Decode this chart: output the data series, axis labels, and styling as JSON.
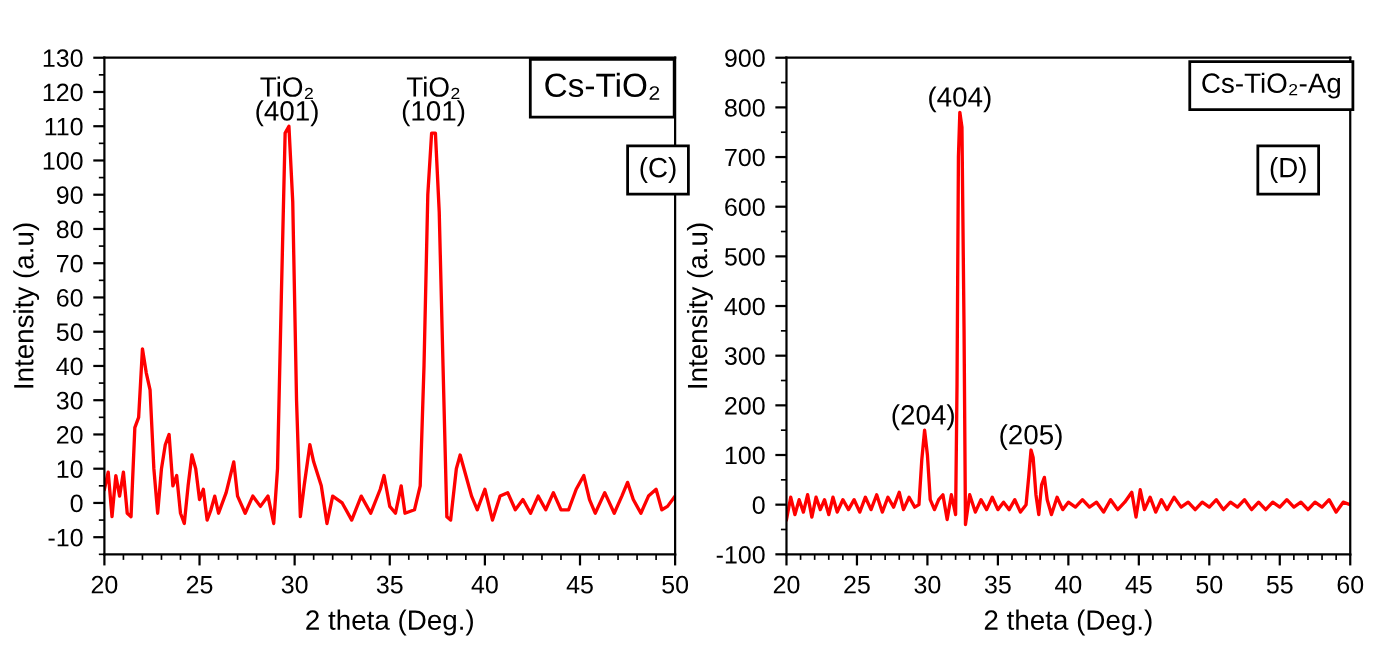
{
  "chart_data": [
    {
      "type": "line",
      "xlabel": "2 theta (Deg.)",
      "ylabel": "Intensity (a.u)",
      "xlim": [
        20,
        50
      ],
      "ylim": [
        -15,
        130
      ],
      "xticks": [
        20,
        25,
        30,
        35,
        40,
        45,
        50
      ],
      "yticks": [
        -10,
        0,
        10,
        20,
        30,
        40,
        50,
        60,
        70,
        80,
        90,
        100,
        110,
        120,
        130
      ],
      "grid": false,
      "legend": false,
      "marker": "none",
      "line_style": "solid",
      "series": [
        {
          "color": "#ff0000",
          "x": [
            20,
            20.2,
            20.4,
            20.6,
            20.8,
            21.0,
            21.2,
            21.4,
            21.6,
            21.8,
            22.0,
            22.2,
            22.4,
            22.6,
            22.8,
            23.0,
            23.2,
            23.4,
            23.6,
            23.8,
            24.0,
            24.2,
            24.4,
            24.6,
            24.8,
            25.0,
            25.2,
            25.4,
            25.6,
            25.8,
            26.0,
            26.4,
            26.8,
            27.0,
            27.4,
            27.8,
            28.2,
            28.6,
            28.9,
            29.1,
            29.3,
            29.5,
            29.7,
            29.9,
            30.1,
            30.3,
            30.5,
            30.8,
            31.0,
            31.4,
            31.7,
            32.0,
            32.5,
            33.0,
            33.5,
            34.0,
            34.5,
            34.7,
            35.0,
            35.3,
            35.6,
            35.8,
            36.3,
            36.6,
            36.8,
            37.0,
            37.2,
            37.4,
            37.6,
            37.8,
            38.0,
            38.2,
            38.5,
            38.7,
            39.0,
            39.3,
            39.6,
            40.0,
            40.4,
            40.8,
            41.2,
            41.6,
            42.0,
            42.4,
            42.8,
            43.2,
            43.6,
            44.0,
            44.4,
            44.8,
            45.2,
            45.5,
            45.8,
            46.3,
            46.8,
            47.2,
            47.5,
            47.8,
            48.2,
            48.6,
            49.0,
            49.3,
            49.6,
            50
          ],
          "values": [
            4,
            9,
            -4,
            8,
            2,
            9,
            -3,
            -4,
            22,
            25,
            45,
            38,
            33,
            10,
            -3,
            10,
            17,
            20,
            5,
            8,
            -3,
            -6,
            5,
            14,
            10,
            1,
            4,
            -5,
            -2,
            2,
            -3,
            3,
            12,
            2,
            -3,
            2,
            -1,
            2,
            -6,
            10,
            60,
            108,
            110,
            88,
            30,
            -4,
            5,
            17,
            12,
            5,
            -6,
            2,
            0,
            -5,
            2,
            -3,
            4,
            8,
            -1,
            -3,
            5,
            -3,
            -2,
            5,
            40,
            90,
            108,
            108,
            85,
            40,
            -4,
            -5,
            10,
            14,
            8,
            2,
            -2,
            4,
            -5,
            2,
            3,
            -2,
            1,
            -3,
            2,
            -2,
            3,
            -2,
            -2,
            4,
            8,
            1,
            -3,
            3,
            -3,
            2,
            6,
            1,
            -3,
            2,
            4,
            -2,
            -1,
            2
          ]
        }
      ],
      "annotations": [
        {
          "text": "TiO₂\n(401)",
          "x": 29.6,
          "y": 110
        },
        {
          "text": "TiO₂\n(101)",
          "x": 37.3,
          "y": 110
        },
        "Cs-TiO₂",
        "(C)"
      ]
    },
    {
      "type": "line",
      "xlabel": "2 theta (Deg.)",
      "ylabel": "Intensity (a.u)",
      "xlim": [
        20,
        60
      ],
      "ylim": [
        -100,
        900
      ],
      "xticks": [
        20,
        25,
        30,
        35,
        40,
        45,
        50,
        55,
        60
      ],
      "yticks": [
        -100,
        0,
        100,
        200,
        300,
        400,
        500,
        600,
        700,
        800,
        900
      ],
      "grid": false,
      "legend": false,
      "marker": "none",
      "line_style": "solid",
      "series": [
        {
          "color": "#ff0000",
          "x": [
            20,
            20.3,
            20.6,
            20.9,
            21.2,
            21.5,
            21.8,
            22.1,
            22.4,
            22.7,
            23.0,
            23.3,
            23.6,
            24.0,
            24.4,
            24.8,
            25.2,
            25.6,
            26.0,
            26.4,
            26.8,
            27.2,
            27.6,
            28.0,
            28.3,
            28.7,
            29.1,
            29.4,
            29.6,
            29.8,
            30.0,
            30.2,
            30.5,
            30.8,
            31.1,
            31.4,
            31.7,
            32.0,
            32.1,
            32.2,
            32.3,
            32.45,
            32.6,
            32.7,
            33.0,
            33.4,
            33.8,
            34.2,
            34.6,
            35.0,
            35.4,
            35.8,
            36.2,
            36.6,
            37.0,
            37.2,
            37.35,
            37.5,
            37.7,
            37.9,
            38.1,
            38.3,
            38.5,
            38.8,
            39.2,
            39.6,
            40.0,
            40.5,
            41.0,
            41.5,
            42.0,
            42.5,
            43.0,
            43.5,
            44.0,
            44.5,
            44.8,
            45.1,
            45.4,
            45.8,
            46.2,
            46.6,
            47.0,
            47.5,
            48.0,
            48.5,
            49.0,
            49.5,
            50.0,
            50.5,
            51.0,
            51.5,
            52.0,
            52.5,
            53.0,
            53.5,
            54.0,
            54.5,
            55.0,
            55.5,
            56.0,
            56.5,
            57.0,
            57.5,
            58.0,
            58.5,
            59.0,
            59.5,
            60.0
          ],
          "values": [
            -30,
            15,
            -20,
            10,
            -15,
            20,
            -25,
            15,
            -10,
            10,
            -20,
            15,
            -15,
            10,
            -10,
            10,
            -15,
            15,
            -10,
            20,
            -15,
            15,
            -5,
            25,
            -10,
            15,
            -5,
            0,
            90,
            150,
            100,
            10,
            -10,
            10,
            20,
            -30,
            20,
            -20,
            240,
            700,
            790,
            760,
            350,
            -40,
            20,
            -15,
            10,
            -10,
            15,
            -10,
            5,
            -10,
            10,
            -15,
            0,
            60,
            110,
            95,
            20,
            -20,
            40,
            55,
            10,
            -20,
            15,
            -10,
            5,
            -5,
            10,
            -5,
            5,
            -15,
            10,
            -10,
            5,
            25,
            -25,
            30,
            -10,
            15,
            -15,
            10,
            -10,
            15,
            -5,
            5,
            -10,
            5,
            -5,
            10,
            -10,
            5,
            -5,
            10,
            -10,
            5,
            -10,
            5,
            -5,
            10,
            -5,
            5,
            -10,
            5,
            -5,
            10,
            -15,
            5,
            0
          ]
        }
      ],
      "annotations": [
        {
          "text": "(204)",
          "x": 29.7,
          "y": 150
        },
        {
          "text": "(404)",
          "x": 32.3,
          "y": 790
        },
        {
          "text": "(205)",
          "x": 37.35,
          "y": 110
        },
        "Cs-TiO₂-Ag",
        "(D)"
      ]
    }
  ]
}
